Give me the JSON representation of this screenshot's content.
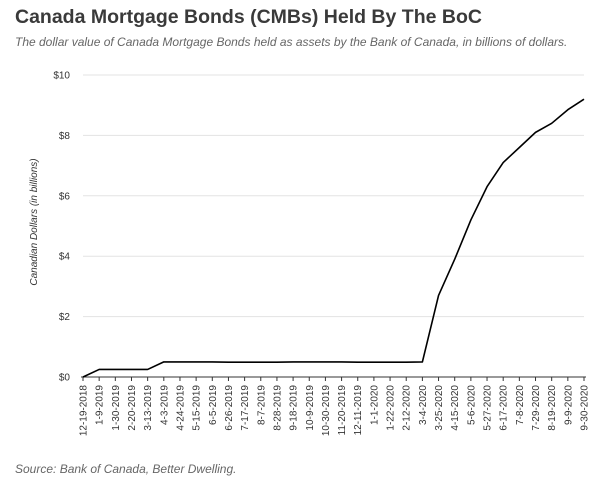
{
  "header": {
    "title": "Canada Mortgage Bonds (CMBs) Held By The BoC",
    "subtitle": "The dollar value of Canada Mortgage Bonds held as assets by the Bank of Canada, in billions of dollars."
  },
  "footer": {
    "source": "Source: Bank of Canada, Better Dwelling."
  },
  "colors": {
    "line": "#000000",
    "grid": "#e3e3e3",
    "axis": "#333333"
  },
  "chart_data": {
    "type": "line",
    "title": "Canada Mortgage Bonds (CMBs) Held By The BoC",
    "xlabel": "",
    "ylabel": "Canadian Dollars (in billions)",
    "ylim": [
      0,
      10
    ],
    "yticks": [
      0,
      2,
      4,
      6,
      8,
      10
    ],
    "ytick_labels": [
      "$0",
      "$2",
      "$4",
      "$6",
      "$8",
      "$10"
    ],
    "grid": true,
    "legend": "none",
    "x": [
      "12-19-2018",
      "1-9-2019",
      "1-30-2019",
      "2-20-2019",
      "3-13-2019",
      "4-3-2019",
      "4-24-2019",
      "5-15-2019",
      "6-5-2019",
      "6-26-2019",
      "7-17-2019",
      "8-7-2019",
      "8-28-2019",
      "9-18-2019",
      "10-9-2019",
      "10-30-2019",
      "11-20-2019",
      "12-11-2019",
      "1-1-2020",
      "1-22-2020",
      "2-12-2020",
      "3-4-2020",
      "3-25-2020",
      "4-15-2020",
      "5-6-2020",
      "5-27-2020",
      "6-17-2020",
      "7-8-2020",
      "7-29-2020",
      "8-19-2020",
      "9-9-2020",
      "9-30-2020"
    ],
    "series": [
      {
        "values": [
          0,
          0.25,
          0.25,
          0.25,
          0.25,
          0.5,
          0.5,
          0.5,
          0.5,
          0.49,
          0.49,
          0.49,
          0.49,
          0.5,
          0.5,
          0.5,
          0.5,
          0.49,
          0.49,
          0.49,
          0.49,
          0.5,
          2.7,
          3.9,
          5.2,
          6.3,
          7.1,
          7.6,
          8.1,
          8.4,
          8.85,
          9.2
        ]
      }
    ]
  }
}
